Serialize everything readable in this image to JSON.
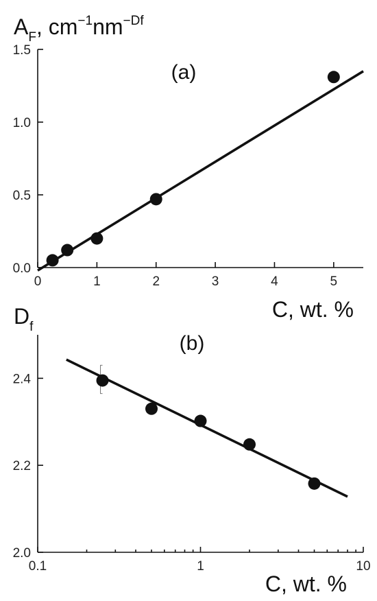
{
  "chart_data": [
    {
      "id": "a",
      "type": "scatter",
      "panel_label": "(a)",
      "ylabel": {
        "main": "A",
        "sub": "F",
        "rest": ", cm",
        "sup1": "−1",
        "mid": "nm",
        "sup2": "−Df"
      },
      "xlabel": "C, wt. %",
      "xlim": [
        0,
        5.5
      ],
      "ylim": [
        0,
        1.5
      ],
      "x_ticks": [
        0,
        1,
        2,
        3,
        4,
        5
      ],
      "x_tick_labels": [
        "0",
        "1",
        "2",
        "3",
        "4",
        "5"
      ],
      "y_ticks": [
        0,
        0.5,
        1.0,
        1.5
      ],
      "y_tick_labels": [
        "0.0",
        "0.5",
        "1.0",
        "1.5"
      ],
      "x_scale": "linear",
      "points": {
        "x": [
          0.25,
          0.5,
          1,
          2,
          5
        ],
        "y": [
          0.05,
          0.12,
          0.2,
          0.47,
          1.31
        ]
      },
      "fit_line": {
        "x": [
          0,
          5.5
        ],
        "y": [
          -0.02,
          1.35
        ]
      }
    },
    {
      "id": "b",
      "type": "scatter",
      "panel_label": "(b)",
      "ylabel": {
        "main": "D",
        "sub": "f"
      },
      "xlabel": "C, wt. %",
      "xlim": [
        0.1,
        10
      ],
      "ylim": [
        2.0,
        2.5
      ],
      "x_scale": "log",
      "x_ticks": [
        0.1,
        1,
        10
      ],
      "x_tick_labels": [
        "0.1",
        "1",
        "10"
      ],
      "y_ticks": [
        2.0,
        2.2,
        2.4
      ],
      "y_tick_labels": [
        "2.0",
        "2.2",
        "2.4"
      ],
      "points": {
        "x": [
          0.25,
          0.5,
          1,
          2,
          5
        ],
        "y": [
          2.395,
          2.33,
          2.302,
          2.248,
          2.158
        ]
      },
      "error_bars": [
        {
          "x": 0.25,
          "low": 2.365,
          "high": 2.43
        }
      ],
      "fit_line": {
        "x": [
          0.15,
          8
        ],
        "y": [
          2.443,
          2.128
        ]
      }
    }
  ]
}
